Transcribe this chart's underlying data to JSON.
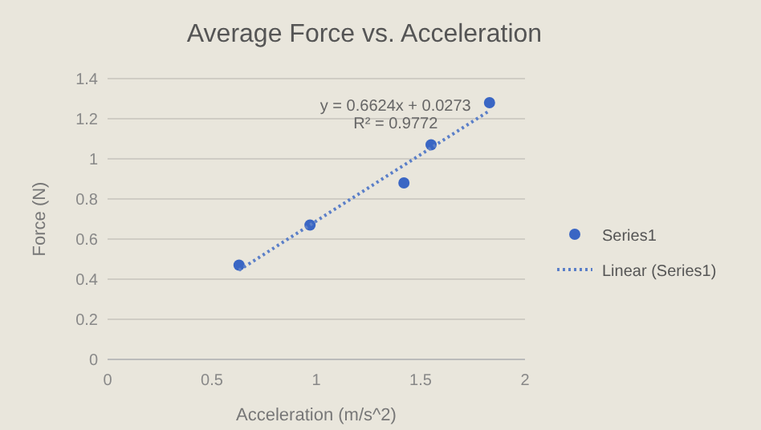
{
  "chart_data": {
    "type": "scatter",
    "title": "Average Force vs. Acceleration",
    "xlabel": "Acceleration (m/s^2)",
    "ylabel": "Force (N)",
    "xlim": [
      0,
      2
    ],
    "xticks": [
      0,
      0.5,
      1,
      1.5,
      2
    ],
    "ylim": [
      0,
      1.4
    ],
    "yticks": [
      0,
      0.2,
      0.4,
      0.6,
      0.8,
      1,
      1.2,
      1.4
    ],
    "grid": "y",
    "legend": "right",
    "marker": "circle",
    "annotations": [
      "y = 0.6624x + 0.0273",
      "R² = 0.9772"
    ],
    "series": [
      {
        "name": "Series1",
        "color": "#3a66c4",
        "x": [
          0.63,
          0.97,
          1.42,
          1.55,
          1.83
        ],
        "values": [
          0.47,
          0.67,
          0.88,
          1.07,
          1.28
        ]
      },
      {
        "name": "Linear (Series1)",
        "type": "line",
        "line_style": "dotted",
        "marker": "none",
        "color": "#5b7fc8",
        "x": [
          0.63,
          1.83
        ],
        "values": [
          0.445,
          1.24
        ]
      }
    ]
  }
}
